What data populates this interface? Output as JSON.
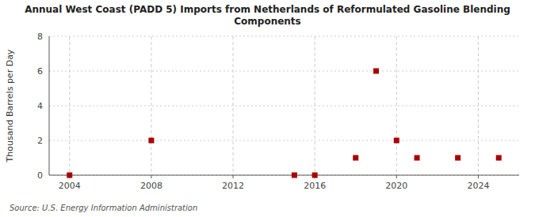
{
  "chart_data": {
    "type": "scatter",
    "title": "Annual West Coast (PADD 5) Imports from Netherlands of Reformulated Gasoline Blending\nComponents",
    "ylabel": "Thousand Barrels per Day",
    "source": "Source: U.S. Energy Information Administration",
    "x": [
      2004,
      2008,
      2015,
      2016,
      2018,
      2019,
      2020,
      2021,
      2023,
      2025
    ],
    "values": [
      0,
      2,
      0,
      0,
      1,
      6,
      2,
      1,
      1,
      1
    ],
    "color": "#aa0000",
    "marker": "square",
    "xlim": [
      2003,
      2026
    ],
    "ylim": [
      0,
      8
    ],
    "xticks": [
      2004,
      2008,
      2012,
      2016,
      2020,
      2024
    ],
    "yticks": [
      0,
      2,
      4,
      6,
      8
    ],
    "grid": true
  }
}
